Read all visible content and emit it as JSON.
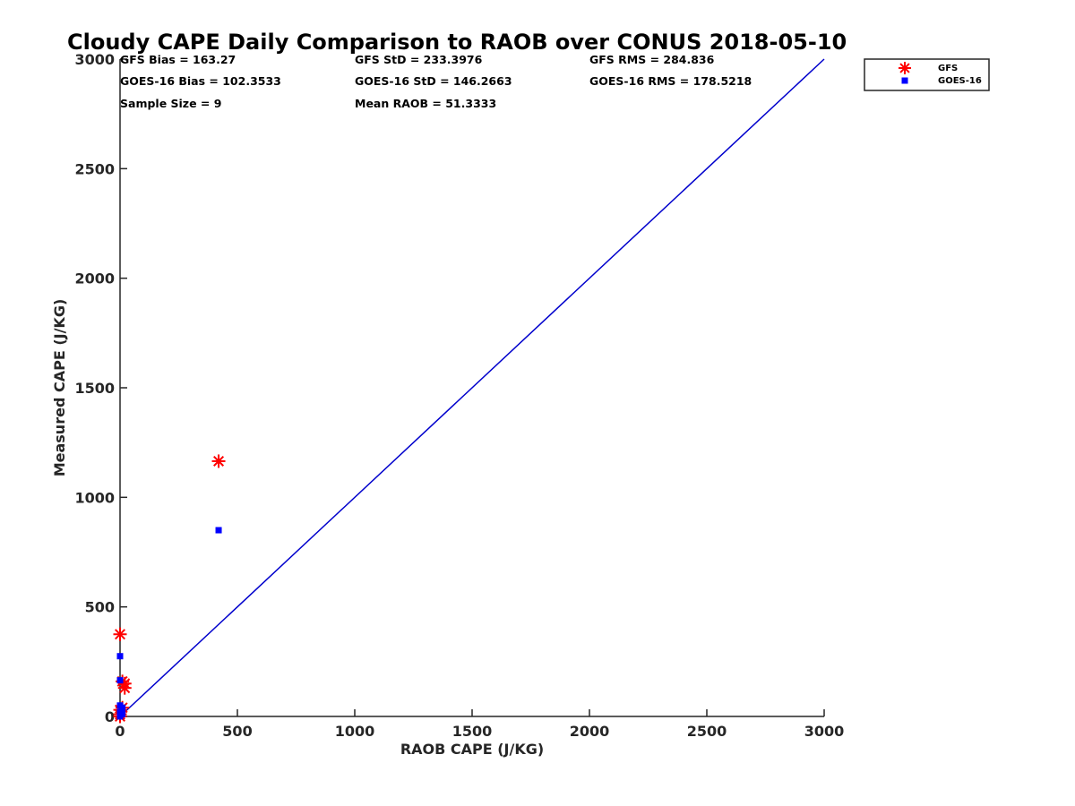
{
  "chart_data": {
    "type": "scatter",
    "title": "Cloudy CAPE Daily Comparison to RAOB over CONUS 2018-05-10",
    "xlabel": "RAOB CAPE (J/KG)",
    "ylabel": "Measured CAPE (J/KG)",
    "xlim": [
      0,
      3000
    ],
    "ylim": [
      0,
      3000
    ],
    "xticks": [
      0,
      500,
      1000,
      1500,
      2000,
      2500,
      3000
    ],
    "yticks": [
      0,
      500,
      1000,
      1500,
      2000,
      2500,
      3000
    ],
    "grid": false,
    "legend_position": "top-right",
    "stats": [
      "GFS Bias = 163.27",
      "GFS StD = 233.3976",
      "GFS RMS = 284.836",
      "GOES-16 Bias = 102.3533",
      "GOES-16 StD = 146.2663",
      "GOES-16 RMS = 178.5218",
      "Sample Size = 9",
      "Mean RAOB = 51.3333"
    ],
    "reference_line": {
      "x": [
        0,
        3000
      ],
      "y": [
        0,
        3000
      ],
      "color": "#0000cc"
    },
    "series": [
      {
        "name": "GFS",
        "marker": "asterisk",
        "color": "#ff0000",
        "x": [
          0,
          0,
          0,
          0,
          10,
          10,
          20,
          20,
          420
        ],
        "y": [
          0,
          10,
          30,
          375,
          40,
          160,
          130,
          150,
          1165
        ]
      },
      {
        "name": "GOES-16",
        "marker": "square",
        "color": "#0000ff",
        "x": [
          0,
          0,
          0,
          0,
          0,
          10,
          10,
          10,
          420
        ],
        "y": [
          0,
          20,
          50,
          165,
          275,
          10,
          30,
          40,
          850
        ]
      }
    ]
  }
}
